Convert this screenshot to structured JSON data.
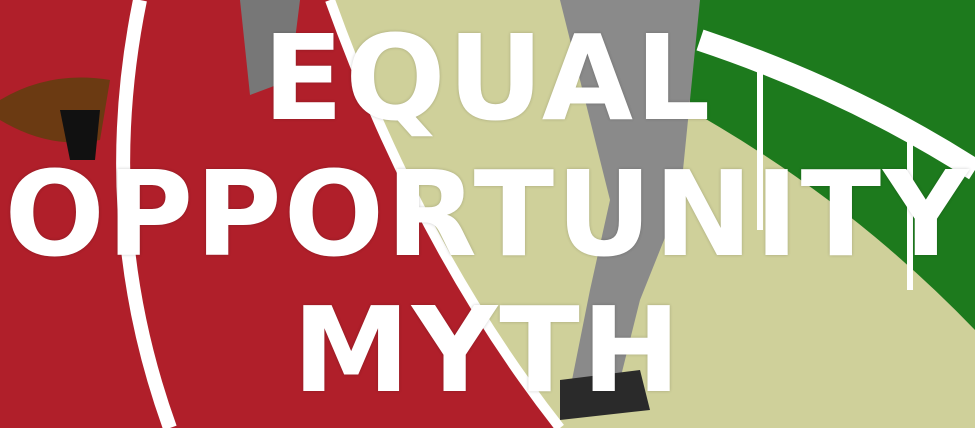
{
  "title_lines": [
    "EQUAL",
    "OPPORTUNITY",
    "MYTH"
  ]
}
